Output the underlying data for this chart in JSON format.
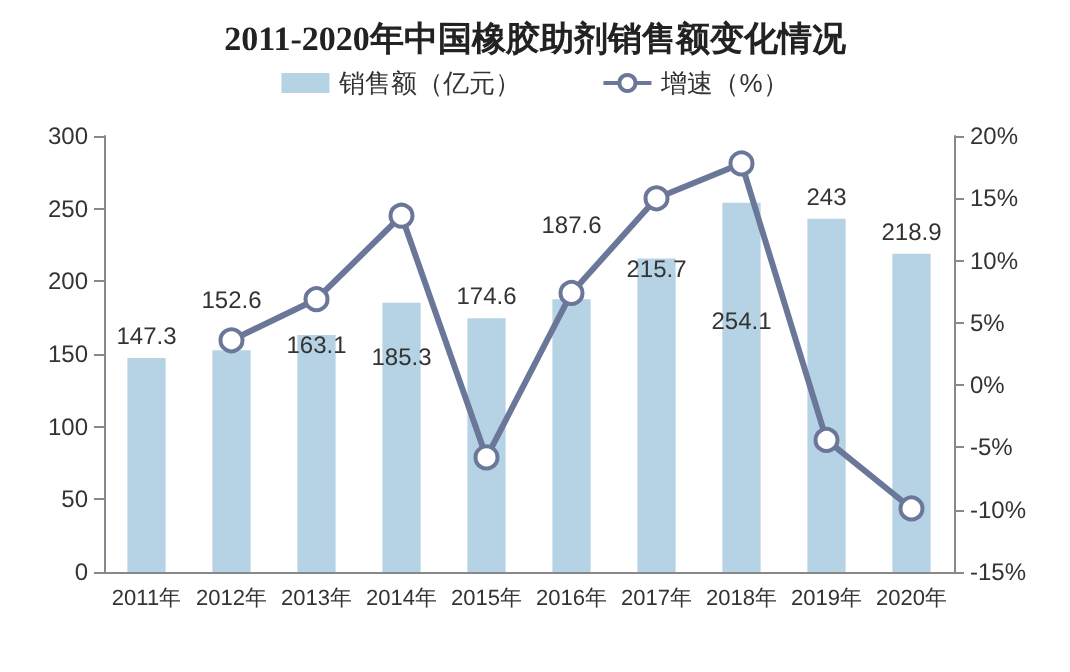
{
  "chart_data": {
    "type": "bar",
    "title": "2011-2020年中国橡胶助剂销售额变化情况",
    "categories": [
      "2011年",
      "2012年",
      "2013年",
      "2014年",
      "2015年",
      "2016年",
      "2017年",
      "2018年",
      "2019年",
      "2020年"
    ],
    "series": [
      {
        "name": "销售额（亿元）",
        "color": "#b5d3e4",
        "values": [
          147.3,
          152.6,
          163.1,
          185.3,
          174.6,
          187.6,
          215.7,
          254.1,
          243,
          218.9
        ],
        "data_labels": true
      },
      {
        "name": "增速（%）",
        "type": "line",
        "axis": "y2",
        "color": "#6b7799",
        "marker": "circle",
        "values": [
          null,
          3.6,
          6.9,
          13.6,
          -5.8,
          7.4,
          15.0,
          17.8,
          -4.4,
          -9.9
        ]
      }
    ],
    "ylim": [
      0,
      300
    ],
    "yticks": [
      0,
      50,
      100,
      150,
      200,
      250,
      300
    ],
    "y2lim": [
      -15,
      20
    ],
    "y2ticks": [
      {
        "value": -15,
        "label": "-15%"
      },
      {
        "value": -10,
        "label": "-10%"
      },
      {
        "value": -5,
        "label": "-5%"
      },
      {
        "value": 0,
        "label": "0%"
      },
      {
        "value": 5,
        "label": "5%"
      },
      {
        "value": 10,
        "label": "10%"
      },
      {
        "value": 15,
        "label": "15%"
      },
      {
        "value": 20,
        "label": "20%"
      }
    ],
    "legend": "top",
    "grid": false
  }
}
